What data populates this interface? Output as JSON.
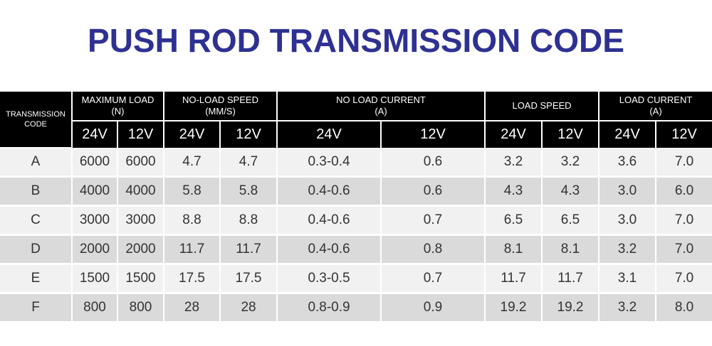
{
  "title": "PUSH ROD TRANSMISSION CODE",
  "table": {
    "code_header": [
      "TRANSMISSION",
      "CODE"
    ],
    "groups": [
      {
        "line1": "MAXIMUM LOAD",
        "line2": "(N)"
      },
      {
        "line1": "NO-LOAD SPEED",
        "line2": "(MM/S)"
      },
      {
        "line1": "NO LOAD CURRENT",
        "line2": "(A)"
      },
      {
        "line1": "LOAD SPEED",
        "line2": ""
      },
      {
        "line1": "LOAD CURRENT",
        "line2": "(A)"
      }
    ],
    "voltages": [
      "24V",
      "12V"
    ],
    "rows": [
      {
        "code": "A",
        "values": [
          "6000",
          "6000",
          "4.7",
          "4.7",
          "0.3-0.4",
          "0.6",
          "3.2",
          "3.2",
          "3.6",
          "7.0"
        ]
      },
      {
        "code": "B",
        "values": [
          "4000",
          "4000",
          "5.8",
          "5.8",
          "0.4-0.6",
          "0.6",
          "4.3",
          "4.3",
          "3.0",
          "6.0"
        ]
      },
      {
        "code": "C",
        "values": [
          "3000",
          "3000",
          "8.8",
          "8.8",
          "0.4-0.6",
          "0.7",
          "6.5",
          "6.5",
          "3.0",
          "7.0"
        ]
      },
      {
        "code": "D",
        "values": [
          "2000",
          "2000",
          "11.7",
          "11.7",
          "0.4-0.6",
          "0.8",
          "8.1",
          "8.1",
          "3.2",
          "7.0"
        ]
      },
      {
        "code": "E",
        "values": [
          "1500",
          "1500",
          "17.5",
          "17.5",
          "0.3-0.5",
          "0.7",
          "11.7",
          "11.7",
          "3.1",
          "7.0"
        ]
      },
      {
        "code": "F",
        "values": [
          "800",
          "800",
          "28",
          "28",
          "0.8-0.9",
          "0.9",
          "19.2",
          "19.2",
          "3.2",
          "8.0"
        ]
      }
    ]
  },
  "colors": {
    "title": "#2e3192",
    "header_bg": "#000000",
    "header_text": "#ffffff",
    "row_light": "#f1f1f1",
    "row_dark": "#dadada",
    "cell_text": "#333333"
  }
}
